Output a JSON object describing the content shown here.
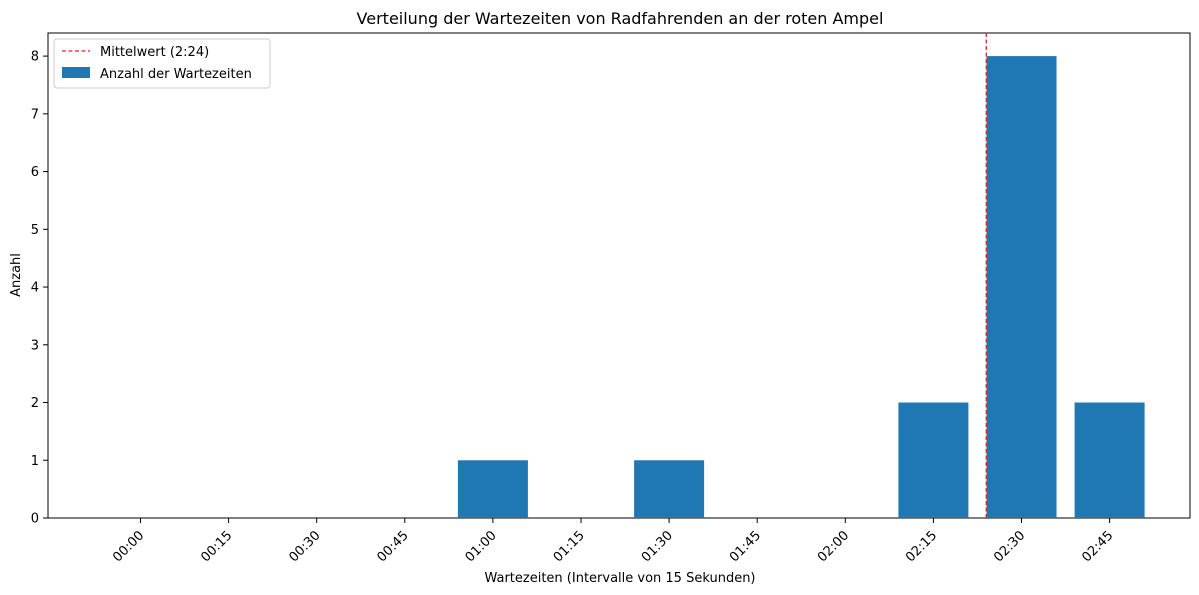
{
  "chart_data": {
    "type": "bar",
    "title": "Verteilung der Wartezeiten von Radfahrenden an der roten Ampel",
    "xlabel": "Wartezeiten (Intervalle von 15 Sekunden)",
    "ylabel": "Anzahl",
    "categories": [
      "00:00",
      "00:15",
      "00:30",
      "00:45",
      "01:00",
      "01:15",
      "01:30",
      "01:45",
      "02:00",
      "02:15",
      "02:30",
      "02:45"
    ],
    "series": [
      {
        "name": "Anzahl der Wartezeiten",
        "values": [
          0,
          0,
          0,
          0,
          1,
          0,
          1,
          0,
          0,
          2,
          8,
          2
        ],
        "color": "#1f77b4"
      }
    ],
    "mean_line": {
      "label": "Mittelwert (2:24)",
      "x_seconds": 144,
      "color": "#d62728",
      "style": "dashed"
    },
    "yticks": [
      0,
      1,
      2,
      3,
      4,
      5,
      6,
      7,
      8
    ],
    "ylim": [
      0,
      8.4
    ],
    "grid": false,
    "legend_position": "top-left"
  }
}
